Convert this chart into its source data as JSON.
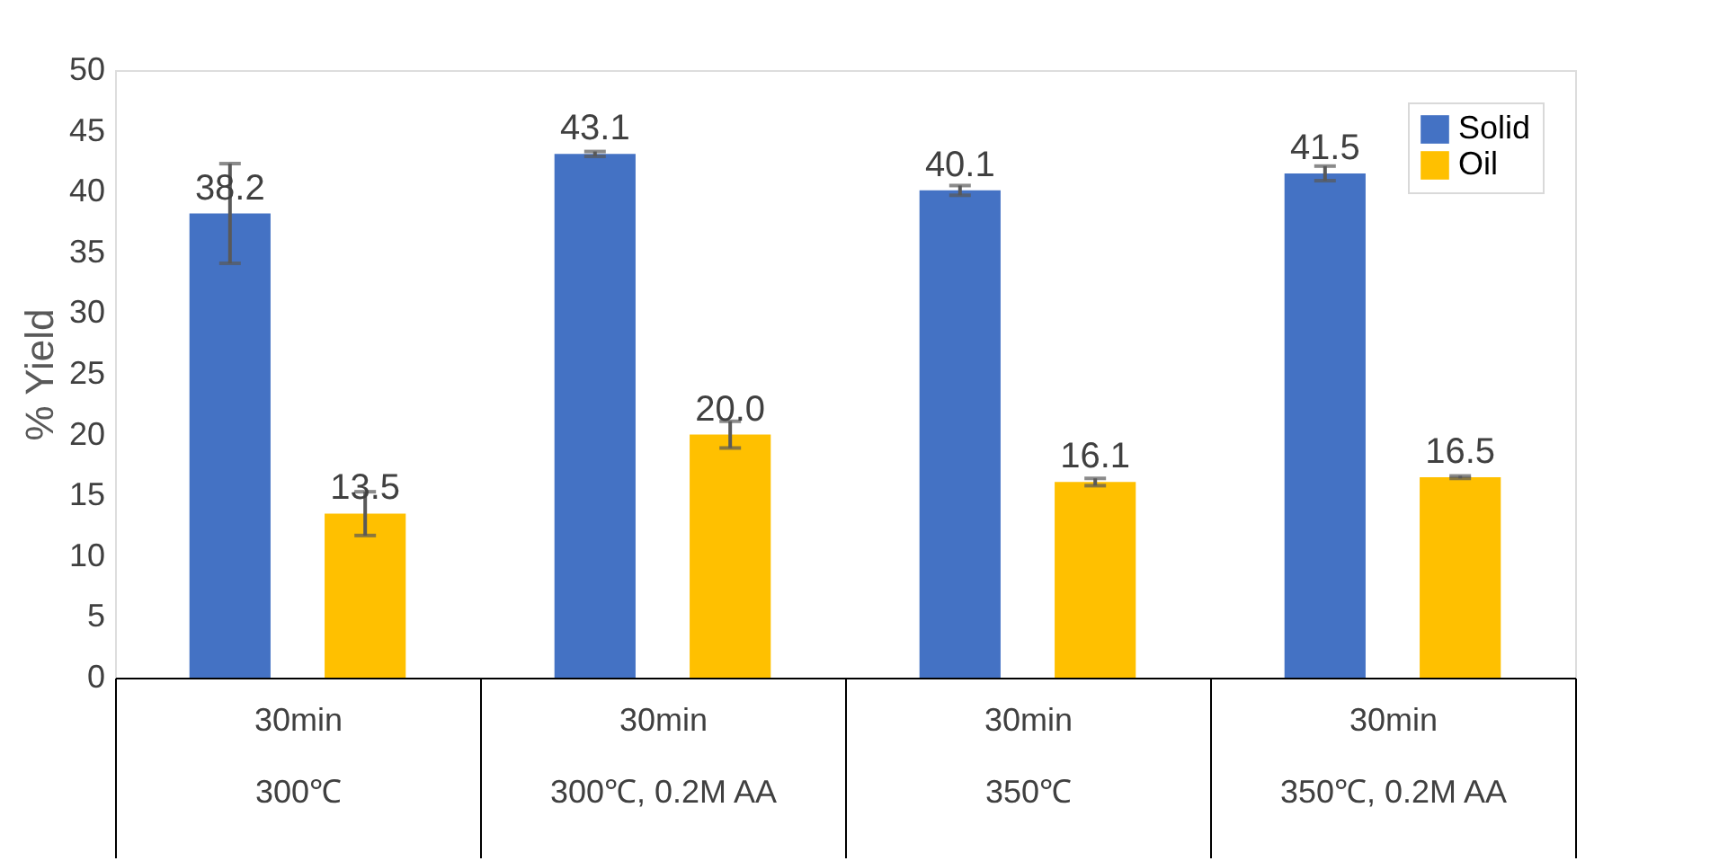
{
  "chart_data": {
    "type": "bar",
    "ylabel": "% Yield",
    "categories": [
      "30min\n300℃",
      "30min\n300℃, 0.2M AA",
      "30min\n350℃",
      "30min\n350℃, 0.2M AA"
    ],
    "series": [
      {
        "name": "Solid",
        "color": "#4472c4",
        "values": [
          38.2,
          43.1,
          40.1,
          41.5
        ],
        "errors": [
          4.1,
          0.2,
          0.4,
          0.6
        ]
      },
      {
        "name": "Oil",
        "color": "#ffc000",
        "values": [
          13.5,
          20.0,
          16.1,
          16.5
        ],
        "errors": [
          1.8,
          1.1,
          0.3,
          0.1
        ],
        "value_labels": [
          "13.5",
          "20.0",
          "16.1",
          "16.5"
        ]
      }
    ],
    "ylim": [
      0,
      50
    ],
    "yticks": [
      0,
      5,
      10,
      15,
      20,
      25,
      30,
      35,
      40,
      45,
      50
    ],
    "grid": false,
    "legend": "top right",
    "data_labels": true
  }
}
